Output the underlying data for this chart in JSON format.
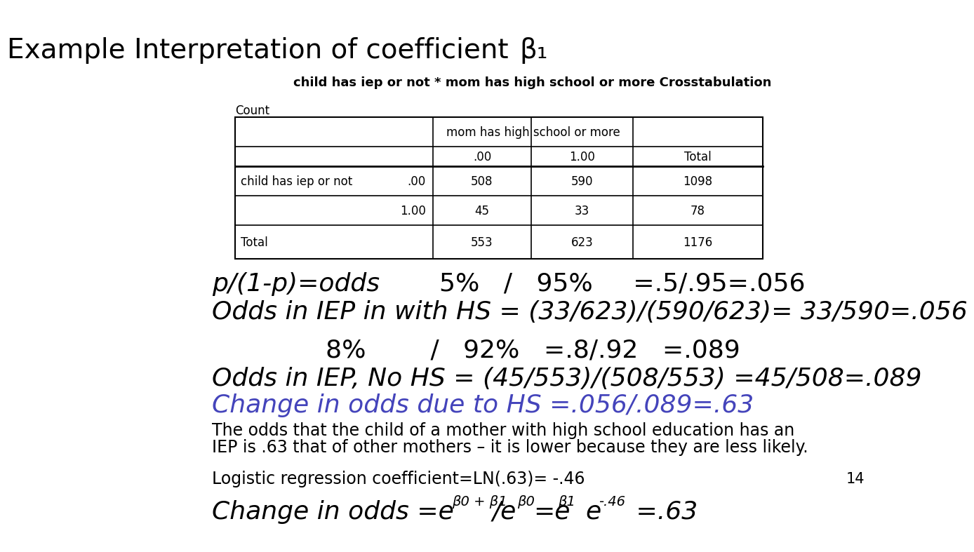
{
  "bg_color": "#ffffff",
  "title_text": "Example Interpretation of coefficient ",
  "title_beta": "β₁",
  "subtitle": "child has iep or not * mom has high school or more Crosstabulation",
  "count_label": "Count",
  "table": {
    "col_group_header": "mom has high school or more",
    "sub_headers": [
      ".00",
      "1.00",
      "Total"
    ],
    "row1_label": "child has iep or not",
    "row1_sublabel": ".00",
    "row2_sublabel": "1.00",
    "footer_label": "Total",
    "data": [
      [
        508,
        590,
        1098
      ],
      [
        45,
        33,
        78
      ],
      [
        553,
        623,
        1176
      ]
    ]
  },
  "line1a": "p/(1-p)=odds",
  "line1b": "5%   /   95%     =.5/.95=.056",
  "line2": "Odds in IEP in with HS = (33/623)/(590/623)= 33/590=.056",
  "line3": "8%        /   92%   =.8/.92   =.089",
  "line4": "Odds in IEP, No HS = (45/553)/(508/553) =45/508=.089",
  "line5": "Change in odds due to HS =.056/.089=.63",
  "line6": "The odds that the child of a mother with high school education has an",
  "line7": "IEP is .63 that of other mothers – it is lower because they are less likely.",
  "line8": "Logistic regression coefficient=LN(.63)= -.46",
  "line9a": "Change in odds =e",
  "line9_sup1": "β0 + β1",
  "line9b": "/e",
  "line9_sup2": "β0",
  "line9c": "=e",
  "line9_sup3": "β1",
  "line9d": "  e",
  "line9_sup4": "-.46",
  "line9e": " =.63",
  "page_num": "14",
  "blue_color": "#4444bb",
  "black_color": "#000000"
}
